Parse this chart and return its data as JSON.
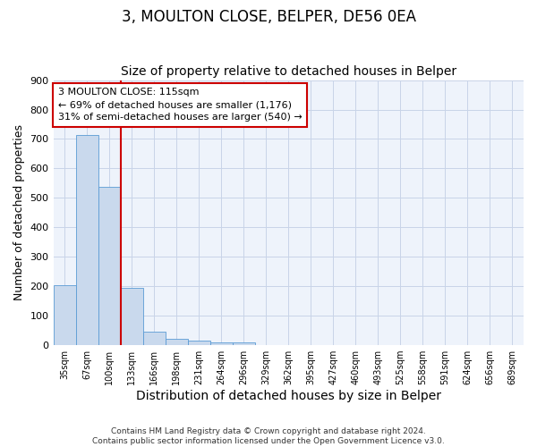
{
  "title": "3, MOULTON CLOSE, BELPER, DE56 0EA",
  "subtitle": "Size of property relative to detached houses in Belper",
  "xlabel": "Distribution of detached houses by size in Belper",
  "ylabel": "Number of detached properties",
  "bin_labels": [
    "35sqm",
    "67sqm",
    "100sqm",
    "133sqm",
    "166sqm",
    "198sqm",
    "231sqm",
    "264sqm",
    "296sqm",
    "329sqm",
    "362sqm",
    "395sqm",
    "427sqm",
    "460sqm",
    "493sqm",
    "525sqm",
    "558sqm",
    "591sqm",
    "624sqm",
    "656sqm",
    "689sqm"
  ],
  "bar_values": [
    203,
    714,
    538,
    193,
    47,
    22,
    15,
    10,
    8,
    0,
    0,
    0,
    0,
    0,
    0,
    0,
    0,
    0,
    0,
    0,
    0
  ],
  "bar_color": "#c9d9ed",
  "bar_edgecolor": "#5b9bd5",
  "vline_x": 2.5,
  "vline_color": "#cc0000",
  "annotation_box_text": "3 MOULTON CLOSE: 115sqm\n← 69% of detached houses are smaller (1,176)\n31% of semi-detached houses are larger (540) →",
  "box_edgecolor": "#cc0000",
  "ylim": [
    0,
    900
  ],
  "yticks": [
    0,
    100,
    200,
    300,
    400,
    500,
    600,
    700,
    800,
    900
  ],
  "title_fontsize": 12,
  "subtitle_fontsize": 10,
  "xlabel_fontsize": 10,
  "ylabel_fontsize": 9,
  "footer_text": "Contains HM Land Registry data © Crown copyright and database right 2024.\nContains public sector information licensed under the Open Government Licence v3.0.",
  "background_color": "#ffffff",
  "plot_bg_color": "#eef3fb",
  "grid_color": "#c8d4e8"
}
